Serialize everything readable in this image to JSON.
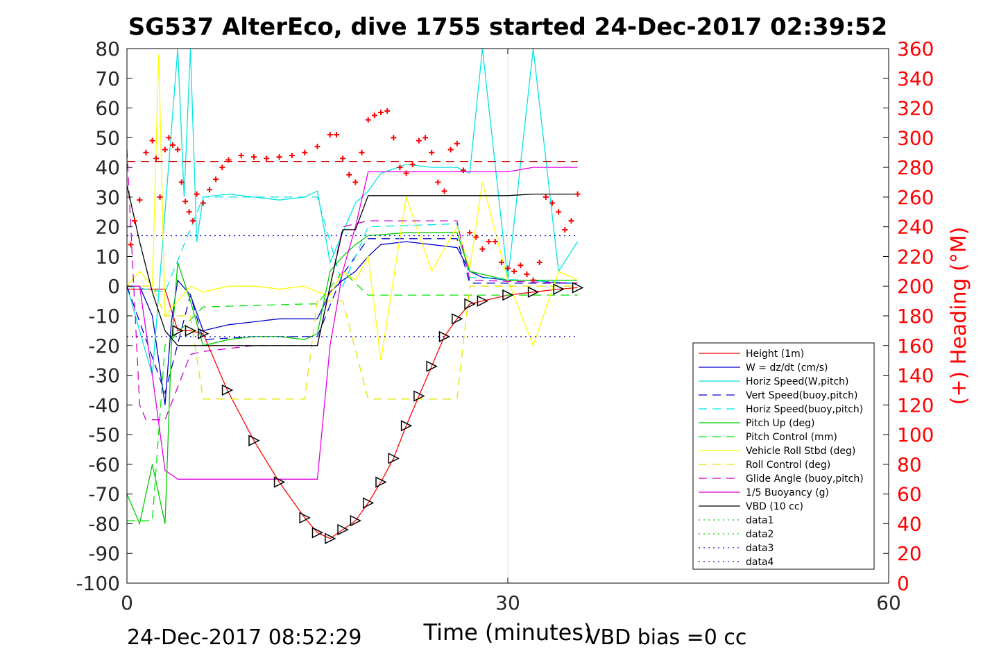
{
  "chart_data": {
    "type": "line",
    "title": "SG537 AlterEco, dive 1755 started 24-Dec-2017 02:39:52",
    "xlabel": "Time (minutes)",
    "ylabel": "",
    "y2label": "(+) Heading (°M)",
    "xlim": [
      0,
      60
    ],
    "ylim": [
      -100,
      80
    ],
    "y2lim": [
      0,
      360
    ],
    "x_ticks": [
      "0",
      "30",
      "60"
    ],
    "y_ticks": [
      "80",
      "70",
      "60",
      "50",
      "40",
      "30",
      "20",
      "10",
      "0",
      "-10",
      "-20",
      "-30",
      "-40",
      "-50",
      "-60",
      "-70",
      "-80",
      "-90",
      "-100"
    ],
    "y2_ticks": [
      "360",
      "340",
      "320",
      "300",
      "280",
      "260",
      "240",
      "220",
      "200",
      "180",
      "160",
      "140",
      "120",
      "100",
      "80",
      "60",
      "40",
      "20",
      "0"
    ],
    "grid": "on",
    "legend_position": "lower-right",
    "footer_left": "24-Dec-2017 08:52:29",
    "footer_right": "VBD bias =0 cc",
    "colors": {
      "height": "#ff0000",
      "w": "#0000cc",
      "horiz_w": "#00e5e5",
      "vert_buoy": "#0000cc",
      "horiz_buoy": "#00e5e5",
      "pitch": "#00cc00",
      "pitch_ctrl": "#00e500",
      "roll": "#ffff00",
      "roll_ctrl": "#e5e500",
      "glide": "#cc00cc",
      "buoyancy": "#e500e5",
      "vbd": "#000000",
      "heading": "#ff0000",
      "heading_axis": "#ff0000"
    },
    "series": [
      {
        "name": "Height (1m)",
        "style": "solid",
        "color": "#ff0000",
        "x": [
          0,
          3,
          4,
          5,
          6,
          7.9,
          10,
          12,
          14,
          15,
          16,
          17,
          18,
          19,
          20,
          21,
          22,
          23,
          24,
          25,
          26,
          27,
          28,
          30,
          32,
          34,
          35.5
        ],
        "y": [
          -1,
          -1,
          -15,
          -15,
          -16,
          -35,
          -52,
          -66,
          -78,
          -83,
          -85,
          -82,
          -79,
          -73,
          -66,
          -58,
          -47,
          -37,
          -27,
          -17,
          -11,
          -6,
          -5,
          -3,
          -2,
          -1,
          -0.5
        ]
      },
      {
        "name": "W = dz/dt (cm/s)",
        "style": "solid",
        "color": "#0000cc",
        "x": [
          0,
          1,
          2,
          3,
          3.5,
          4,
          5,
          6,
          8,
          10,
          12,
          14,
          15,
          16,
          17,
          18,
          19,
          20,
          22,
          24,
          26,
          27,
          28,
          30,
          32,
          34,
          35.5
        ],
        "y": [
          0,
          0,
          -10,
          -40,
          -12,
          2,
          -3,
          -15,
          -13,
          -12,
          -11,
          -11,
          -11,
          -2,
          2,
          5,
          10,
          14,
          15,
          14,
          13,
          5,
          3,
          2,
          2,
          1,
          1
        ]
      },
      {
        "name": "Horiz Speed(W,pitch)",
        "style": "solid",
        "color": "#00e5e5",
        "x": [
          0,
          2,
          4,
          4.5,
          5,
          5.5,
          6,
          8,
          10,
          12,
          14,
          15,
          16,
          17,
          18,
          19,
          20,
          22,
          24,
          26,
          27,
          28,
          30,
          32,
          34,
          35.5
        ],
        "y": [
          0,
          -30,
          80,
          30,
          80,
          15,
          30,
          31,
          30,
          29,
          30,
          32,
          8,
          18,
          28,
          32,
          38,
          41,
          40,
          40,
          38,
          80,
          2,
          80,
          5,
          15
        ]
      },
      {
        "name": "Vert Speed(buoy,pitch)",
        "style": "dash",
        "color": "#0000cc",
        "x": [
          0,
          3,
          5,
          6,
          10,
          14,
          15,
          17,
          19,
          26,
          27,
          35.5
        ],
        "y": [
          0,
          -36,
          -3,
          -18,
          -17,
          -17,
          -17,
          4,
          16,
          16,
          1,
          1
        ]
      },
      {
        "name": "Horiz Speed(buoy,pitch)",
        "style": "dash",
        "color": "#00e5e5",
        "x": [
          0,
          3,
          6,
          10,
          14,
          15,
          17,
          19,
          26,
          27,
          35.5
        ],
        "y": [
          0,
          -2,
          30,
          30,
          30,
          30,
          0,
          20,
          21,
          3,
          1
        ]
      },
      {
        "name": "Pitch Up (deg)",
        "style": "solid",
        "color": "#00cc00",
        "x": [
          0,
          1,
          2,
          3,
          3.5,
          4,
          5,
          6,
          8,
          10,
          12,
          14,
          15,
          16,
          17,
          18,
          19,
          22,
          26,
          27,
          30,
          35.5
        ],
        "y": [
          -70,
          -80,
          -60,
          -80,
          -20,
          8,
          -5,
          -20,
          -18,
          -17,
          -17,
          -18,
          -16,
          5,
          10,
          14,
          17,
          18,
          18,
          5,
          2,
          2
        ]
      },
      {
        "name": "Pitch Control (mm)",
        "style": "dash",
        "color": "#00e500",
        "x": [
          0,
          2,
          3,
          6,
          14,
          15,
          17,
          19,
          26,
          27,
          35.5
        ],
        "y": [
          -79,
          -79,
          -20,
          -7,
          -6,
          -6,
          5,
          -3,
          -3,
          -3,
          -3
        ]
      },
      {
        "name": "Vehicle Roll Stbd (deg)",
        "style": "solid",
        "color": "#ffff00",
        "x": [
          0,
          1,
          2,
          2.5,
          3,
          4,
          5,
          6,
          8,
          10,
          12,
          14,
          15,
          16,
          17,
          18,
          19,
          20,
          22,
          24,
          26,
          27,
          28,
          30,
          32,
          34,
          35.5
        ],
        "y": [
          0,
          5,
          0,
          78,
          -10,
          -5,
          0,
          -2,
          0,
          0,
          -1,
          0,
          -2,
          -3,
          5,
          2,
          10,
          -25,
          30,
          5,
          20,
          6,
          35,
          2,
          -20,
          5,
          2
        ]
      },
      {
        "name": "Roll Control (deg)",
        "style": "dash",
        "color": "#e5e500",
        "x": [
          0,
          2,
          3,
          5,
          6,
          8,
          10,
          14,
          15,
          17,
          19,
          20,
          22,
          24,
          26,
          27,
          35.5
        ],
        "y": [
          0,
          0,
          -10,
          -10,
          -38,
          -38,
          -38,
          -38,
          -5,
          -5,
          -38,
          -38,
          -38,
          -38,
          -38,
          0,
          0
        ]
      },
      {
        "name": "Glide Angle (buoy,pitch)",
        "style": "dash",
        "color": "#cc00cc",
        "x": [
          0,
          1,
          1.5,
          2,
          3,
          5,
          6,
          10,
          14,
          15,
          17,
          19,
          26,
          27,
          35.5
        ],
        "y": [
          46,
          -40,
          -45,
          -45,
          -45,
          -23,
          -22,
          -20,
          -20,
          -20,
          20,
          22,
          22,
          2,
          1
        ]
      },
      {
        "name": "1/5 Buoyancy (g)",
        "style": "solid",
        "color": "#e500e5",
        "x": [
          0,
          1,
          2,
          3,
          4,
          10,
          14,
          15,
          16,
          17,
          18,
          19,
          30,
          32,
          35.5
        ],
        "y": [
          0,
          0,
          -30,
          -62,
          -65,
          -65,
          -65,
          -65,
          -20,
          5,
          20,
          38.5,
          38.5,
          40,
          40
        ]
      },
      {
        "name": "VBD (10 cc)",
        "style": "solid",
        "color": "#000000",
        "x": [
          0,
          1,
          2,
          3,
          4,
          14,
          15,
          16,
          17,
          18,
          19,
          30,
          32,
          35.5
        ],
        "y": [
          34,
          15,
          -2,
          -15,
          -20,
          -20,
          -20,
          0,
          19,
          19,
          30.5,
          30.5,
          31,
          31
        ]
      },
      {
        "name": "data1",
        "style": "dot",
        "color": "#00cc00",
        "x": [],
        "y": []
      },
      {
        "name": "data2",
        "style": "dot",
        "color": "#00cc00",
        "x": [],
        "y": []
      },
      {
        "name": "data3",
        "style": "dot",
        "color": "#0000cc",
        "x": [],
        "y": []
      },
      {
        "name": "data4",
        "style": "dot",
        "color": "#0000cc",
        "x": [
          0,
          35.5
        ],
        "y": [
          17,
          17
        ]
      },
      {
        "name": "",
        "style": "dot",
        "color": "#0000cc",
        "x": [
          0,
          35.5
        ],
        "y": [
          -17,
          -17
        ]
      },
      {
        "name": "",
        "style": "dash",
        "color": "#cc0000",
        "x": [
          0,
          35.5
        ],
        "y": [
          42,
          42
        ]
      }
    ],
    "heading": {
      "x": [
        0.3,
        0.6,
        1,
        1.5,
        2,
        2.3,
        2.6,
        3,
        3.3,
        3.6,
        4,
        4.3,
        4.6,
        4.9,
        5.2,
        5.5,
        6,
        6.5,
        7,
        7.5,
        8,
        9,
        10,
        11,
        12,
        13,
        14,
        15,
        16,
        16.5,
        17,
        17.5,
        18,
        18.5,
        19,
        19.5,
        20,
        20.5,
        21,
        21.5,
        22,
        22.5,
        23,
        23.5,
        24,
        24.5,
        25,
        25.5,
        26,
        26.5,
        27,
        27.5,
        28,
        28.5,
        29,
        29.5,
        30,
        30.5,
        31,
        31.5,
        32,
        32.5,
        33,
        33.5,
        34,
        34.5,
        35,
        35.5
      ],
      "y": [
        228,
        244,
        258,
        290,
        298,
        286,
        260,
        292,
        300,
        295,
        292,
        270,
        257,
        250,
        244,
        262,
        256,
        265,
        272,
        280,
        285,
        288,
        287,
        286,
        287,
        288,
        290,
        294,
        302,
        302,
        286,
        275,
        270,
        290,
        312,
        315,
        317,
        318,
        300,
        280,
        276,
        282,
        298,
        300,
        290,
        270,
        264,
        292,
        296,
        278,
        236,
        233,
        225,
        230,
        230,
        216,
        212,
        210,
        214,
        208,
        204,
        216,
        260,
        256,
        250,
        238,
        244,
        262
      ]
    },
    "legend": [
      "Height (1m)",
      "W = dz/dt (cm/s)",
      "Horiz Speed(W,pitch)",
      "Vert Speed(buoy,pitch)",
      "Horiz Speed(buoy,pitch)",
      "Pitch Up (deg)",
      "Pitch Control (mm)",
      "Vehicle Roll Stbd (deg)",
      "Roll Control (deg)",
      "Glide Angle (buoy,pitch)",
      "1/5 Buoyancy (g)",
      "VBD (10 cc)",
      "data1",
      "data2",
      "data3",
      "data4"
    ]
  }
}
